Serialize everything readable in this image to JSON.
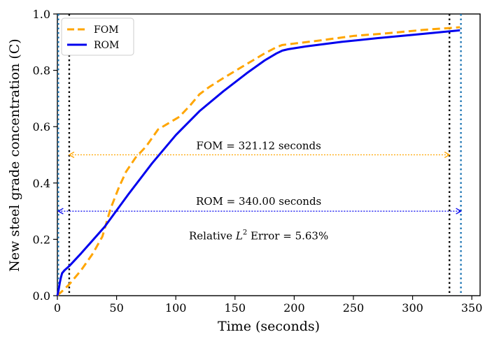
{
  "chart_data": {
    "type": "line",
    "xlabel": "Time (seconds)",
    "ylabel": "New steel grade concentration (C)",
    "xlim": [
      0,
      357
    ],
    "ylim": [
      0,
      1.0
    ],
    "xticks": [
      0,
      50,
      100,
      150,
      200,
      250,
      300,
      350
    ],
    "yticks": [
      0.0,
      0.2,
      0.4,
      0.6,
      0.8,
      1.0
    ],
    "xtick_labels": [
      "0",
      "50",
      "100",
      "150",
      "200",
      "250",
      "300",
      "350"
    ],
    "ytick_labels": [
      "0.0",
      "0.2",
      "0.4",
      "0.6",
      "0.8",
      "1.0"
    ],
    "grid": false,
    "legend_position": "top-left",
    "series": [
      {
        "name": "FOM",
        "color": "#FFA500",
        "style": "dashed",
        "x": [
          0,
          1,
          3,
          5,
          10,
          20,
          30,
          38,
          45,
          52,
          58,
          66,
          75,
          85,
          93,
          103,
          112,
          120,
          128,
          140,
          155,
          165,
          175,
          185,
          190,
          200,
          220,
          250,
          280,
          310,
          331,
          340
        ],
        "y": [
          0.0,
          0.005,
          0.012,
          0.02,
          0.04,
          0.09,
          0.15,
          0.21,
          0.31,
          0.385,
          0.44,
          0.49,
          0.53,
          0.59,
          0.61,
          0.635,
          0.675,
          0.715,
          0.74,
          0.772,
          0.81,
          0.835,
          0.86,
          0.882,
          0.89,
          0.895,
          0.905,
          0.922,
          0.932,
          0.944,
          0.95,
          0.953
        ]
      },
      {
        "name": "ROM",
        "color": "#0000EE",
        "style": "solid",
        "x": [
          0,
          1,
          2,
          3,
          4,
          6,
          10,
          20,
          40,
          60,
          80,
          100,
          120,
          140,
          160,
          175,
          185,
          190,
          195,
          210,
          240,
          270,
          300,
          320,
          340
        ],
        "y": [
          0.0,
          0.02,
          0.045,
          0.065,
          0.08,
          0.09,
          0.105,
          0.15,
          0.245,
          0.36,
          0.47,
          0.57,
          0.655,
          0.725,
          0.79,
          0.835,
          0.86,
          0.87,
          0.875,
          0.885,
          0.901,
          0.914,
          0.926,
          0.934,
          0.942
        ]
      }
    ],
    "vertical_lines": [
      {
        "name": "FOM start",
        "x": 10,
        "color": "#000000",
        "style": "dotted"
      },
      {
        "name": "FOM end",
        "x": 331.12,
        "color": "#000000",
        "style": "dotted"
      },
      {
        "name": "ROM start",
        "x": 0.8,
        "color": "#1F77B4",
        "style": "dotted"
      },
      {
        "name": "ROM end",
        "x": 340.8,
        "color": "#1F77B4",
        "style": "dotted"
      }
    ],
    "arrows": [
      {
        "name": "FOM span",
        "x1": 10,
        "x2": 331.12,
        "y": 0.5,
        "color": "#FFA500"
      },
      {
        "name": "ROM span",
        "x1": 0.8,
        "x2": 340.8,
        "y": 0.3,
        "color": "#0000EE"
      }
    ],
    "annotations": [
      {
        "id": "fom_duration",
        "text": "FOM = 321.12 seconds",
        "x": 170,
        "y": 0.52
      },
      {
        "id": "rom_duration",
        "text": "ROM = 340.00 seconds",
        "x": 170,
        "y": 0.322
      },
      {
        "id": "error_prefix",
        "text": "Relative ",
        "x": 170,
        "y": 0.2
      },
      {
        "id": "error_symbol",
        "text": "L",
        "x": 170,
        "y": 0.2
      },
      {
        "id": "error_exponent",
        "text": "2",
        "x": 170,
        "y": 0.2
      },
      {
        "id": "error_suffix",
        "text": " Error = 5.63%",
        "x": 170,
        "y": 0.2
      }
    ]
  }
}
